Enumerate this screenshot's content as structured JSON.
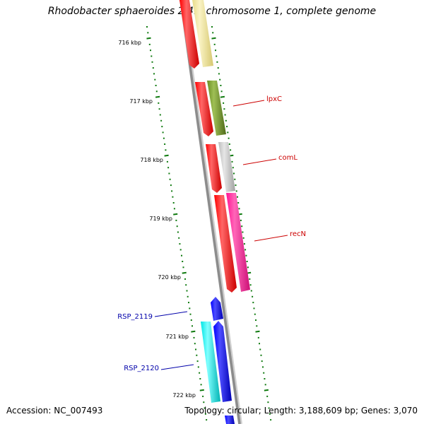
{
  "title": "Rhodobacter sphaeroides 2.4.1 chromosome 1, complete genome",
  "footer": {
    "accession": "Accession: NC_007493",
    "summary": "Topology: circular; Length: 3,188,609 bp; Genes: 3,070"
  },
  "colors": {
    "backbone": "#8c8c8c",
    "tick": "#0f7a0f",
    "label_red": "#cc0000",
    "label_blue": "#0000aa"
  },
  "kbp_marks": [
    "716 kbp",
    "717 kbp",
    "718 kbp",
    "719 kbp",
    "720 kbp",
    "721 kbp",
    "722 kbp"
  ],
  "features": [
    {
      "name": "",
      "color": "#f0e6a0"
    },
    {
      "name": "",
      "color": "#ff0000"
    },
    {
      "name": "lpxC",
      "color": "#6b8e23"
    },
    {
      "name": "",
      "color": "#ff0000"
    },
    {
      "name": "comL",
      "color": "#c0c0c0"
    },
    {
      "name": "",
      "color": "#ff0000"
    },
    {
      "name": "recN",
      "color": "#ff1493"
    },
    {
      "name": "",
      "color": "#ff0000"
    },
    {
      "name": "RSP_2119",
      "color": "#0000ff"
    },
    {
      "name": "RSP_2120",
      "color": "#00e5e5"
    },
    {
      "name": "",
      "color": "#0000ff"
    }
  ]
}
